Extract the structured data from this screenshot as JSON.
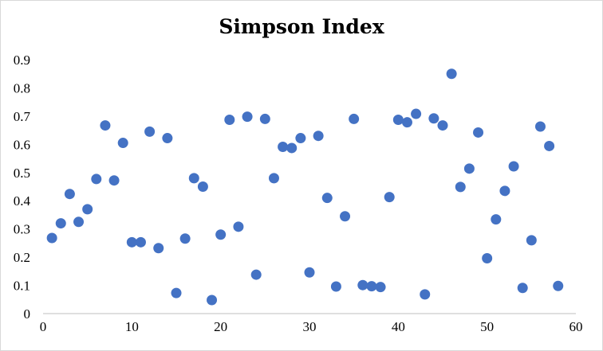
{
  "chart_data": {
    "type": "scatter",
    "title": "Simpson Index",
    "xlabel": "",
    "ylabel": "",
    "xlim": [
      0,
      60
    ],
    "ylim": [
      0,
      0.9
    ],
    "x_ticks": [
      "0",
      "10",
      "20",
      "30",
      "40",
      "50",
      "60"
    ],
    "y_ticks": [
      "0",
      "0.1",
      "0.2",
      "0.3",
      "0.4",
      "0.5",
      "0.6",
      "0.7",
      "0.8",
      "0.9"
    ],
    "grid": false,
    "legend": "none",
    "marker_color": "#4472C4",
    "series": [
      {
        "x": [
          1,
          2,
          3,
          4,
          5,
          6,
          7,
          8,
          9,
          10,
          11,
          12,
          13,
          14,
          15,
          16,
          17,
          18,
          19,
          20,
          21,
          22,
          23,
          24,
          25,
          26,
          27,
          28,
          29,
          30,
          31,
          32,
          33,
          34,
          35,
          36,
          37,
          38,
          39,
          40,
          41,
          42,
          43,
          44,
          45,
          46,
          47,
          48,
          49,
          50,
          51,
          52,
          53,
          54,
          55,
          56,
          57,
          58
        ],
        "y": [
          0.268,
          0.32,
          0.424,
          0.325,
          0.37,
          0.477,
          0.667,
          0.472,
          0.605,
          0.253,
          0.253,
          0.645,
          0.232,
          0.622,
          0.073,
          0.266,
          0.48,
          0.45,
          0.048,
          0.28,
          0.687,
          0.308,
          0.698,
          0.138,
          0.69,
          0.48,
          0.591,
          0.587,
          0.622,
          0.146,
          0.63,
          0.41,
          0.096,
          0.345,
          0.69,
          0.101,
          0.097,
          0.094,
          0.413,
          0.687,
          0.678,
          0.708,
          0.068,
          0.692,
          0.667,
          0.85,
          0.449,
          0.514,
          0.642,
          0.196,
          0.334,
          0.435,
          0.522,
          0.091,
          0.26,
          0.663,
          0.594,
          0.098
        ]
      }
    ]
  }
}
